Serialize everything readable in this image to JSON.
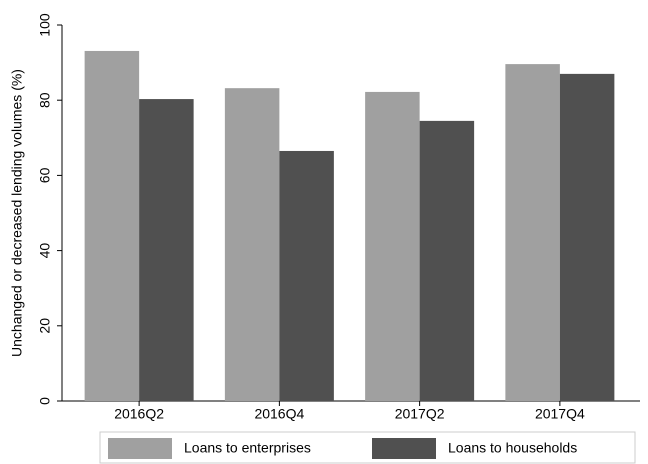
{
  "chart_data": {
    "type": "bar",
    "y_label": "Unchanged or decreased lending volumes (%)",
    "categories": [
      "2016Q2",
      "2016Q4",
      "2017Q2",
      "2017Q4"
    ],
    "series": [
      {
        "name": "Loans to enterprises",
        "color": "#a0a0a0",
        "values": [
          93.1,
          83.2,
          82.2,
          89.6
        ]
      },
      {
        "name": "Loans to households",
        "color": "#505050",
        "values": [
          80.3,
          66.5,
          74.5,
          87.0
        ]
      }
    ],
    "ylim": [
      0,
      100
    ],
    "yticks": [
      0,
      20,
      40,
      60,
      80,
      100
    ],
    "grid": false,
    "legend": "bottom"
  }
}
